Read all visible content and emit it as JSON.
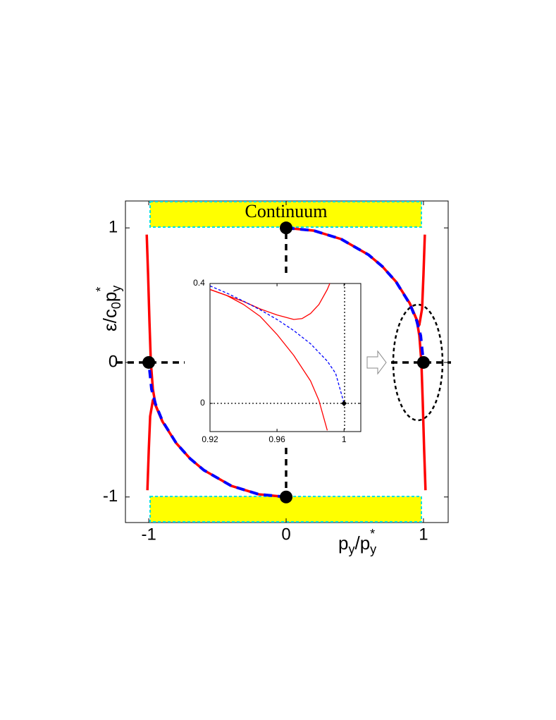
{
  "chart_data": [
    {
      "type": "line",
      "annotation": "Continuum",
      "xlabel": [
        "p",
        "y",
        "/p",
        "y",
        "*"
      ],
      "ylabel": [
        "ε/c",
        "0",
        "p",
        "y",
        "*"
      ],
      "xlim": [
        -1.17,
        1.18
      ],
      "ylim": [
        -1.19,
        1.2
      ],
      "xticks": [
        -1,
        0,
        1
      ],
      "yticks": [
        -1,
        0,
        1
      ],
      "series": [
        {
          "color": "#ff0000",
          "linestyle": "solid",
          "width": 3.5,
          "x": [
            0,
            0.2,
            0.4,
            0.6,
            0.7,
            0.8,
            0.9,
            0.95,
            0.97,
            0.99,
            1.0,
            1.01
          ],
          "values": [
            1,
            0.98,
            0.917,
            0.8,
            0.714,
            0.6,
            0.44,
            0.32,
            0.28,
            0.4,
            0.65,
            0.95
          ]
        },
        {
          "color": "#ff0000",
          "linestyle": "solid",
          "width": 3.5,
          "x": [
            0.9,
            0.95,
            0.97,
            0.985,
            0.995,
            1.005,
            1.015
          ],
          "values": [
            0.44,
            0.32,
            0.2,
            0.0,
            -0.3,
            -0.65,
            -0.95
          ]
        },
        {
          "color": "#ff0000",
          "linestyle": "solid",
          "width": 3.5,
          "x": [
            0,
            -0.2,
            -0.4,
            -0.6,
            -0.7,
            -0.8,
            -0.9,
            -0.95,
            -0.97,
            -0.99,
            -1.0,
            -1.01
          ],
          "values": [
            -1,
            -0.98,
            -0.917,
            -0.8,
            -0.714,
            -0.6,
            -0.44,
            -0.32,
            -0.28,
            -0.4,
            -0.65,
            -0.95
          ]
        },
        {
          "color": "#ff0000",
          "linestyle": "solid",
          "width": 3.5,
          "x": [
            -0.9,
            -0.95,
            -0.97,
            -0.985,
            -0.995,
            -1.005,
            -1.015
          ],
          "values": [
            -0.44,
            -0.32,
            -0.2,
            0.0,
            0.3,
            0.65,
            0.95
          ]
        },
        {
          "color": "#0000ff",
          "linestyle": "dashed",
          "width": 4,
          "x": [
            0,
            0.2,
            0.4,
            0.6,
            0.7,
            0.8,
            0.9,
            0.95,
            0.98,
            1
          ],
          "values": [
            1,
            0.98,
            0.917,
            0.8,
            0.714,
            0.6,
            0.436,
            0.312,
            0.199,
            0
          ]
        },
        {
          "color": "#0000ff",
          "linestyle": "dashed",
          "width": 4,
          "x": [
            0,
            -0.2,
            -0.4,
            -0.6,
            -0.7,
            -0.8,
            -0.9,
            -0.95,
            -0.98,
            -1
          ],
          "values": [
            -1,
            -0.98,
            -0.917,
            -0.8,
            -0.714,
            -0.6,
            -0.436,
            -0.312,
            -0.199,
            0
          ]
        }
      ],
      "markers": {
        "color": "#000000",
        "shape": "circle",
        "x": [
          -1,
          0,
          1,
          0
        ],
        "values": [
          0,
          1,
          0,
          -1
        ]
      }
    },
    {
      "type": "line",
      "xlim": [
        0.92,
        1.01
      ],
      "ylim": [
        -0.094,
        0.4
      ],
      "xticks": [
        0.92,
        0.96,
        1
      ],
      "yticks": [
        0,
        0.4
      ],
      "series": [
        {
          "color": "#ff0000",
          "linestyle": "solid",
          "width": 1.3,
          "x": [
            0.92,
            0.93,
            0.94,
            0.95,
            0.96,
            0.97,
            0.975,
            0.98,
            0.985,
            0.99,
            0.9915
          ],
          "values": [
            0.38,
            0.36,
            0.34,
            0.315,
            0.295,
            0.28,
            0.283,
            0.3,
            0.33,
            0.38,
            0.4
          ]
        },
        {
          "color": "#ff0000",
          "linestyle": "solid",
          "width": 1.3,
          "x": [
            0.92,
            0.93,
            0.94,
            0.95,
            0.96,
            0.97,
            0.98,
            0.985,
            0.99
          ],
          "values": [
            0.38,
            0.36,
            0.33,
            0.29,
            0.23,
            0.16,
            0.075,
            0.01,
            -0.09
          ]
        },
        {
          "color": "#0000ff",
          "linestyle": "dashed",
          "width": 1.3,
          "x": [
            0.92,
            0.93,
            0.94,
            0.95,
            0.96,
            0.97,
            0.98,
            0.99,
            0.995,
            1
          ],
          "values": [
            0.392,
            0.368,
            0.341,
            0.312,
            0.28,
            0.243,
            0.199,
            0.141,
            0.1,
            0
          ]
        }
      ],
      "markers": {
        "color": "#000000",
        "shape": "diamond",
        "x": [
          1
        ],
        "values": [
          0
        ]
      }
    }
  ]
}
